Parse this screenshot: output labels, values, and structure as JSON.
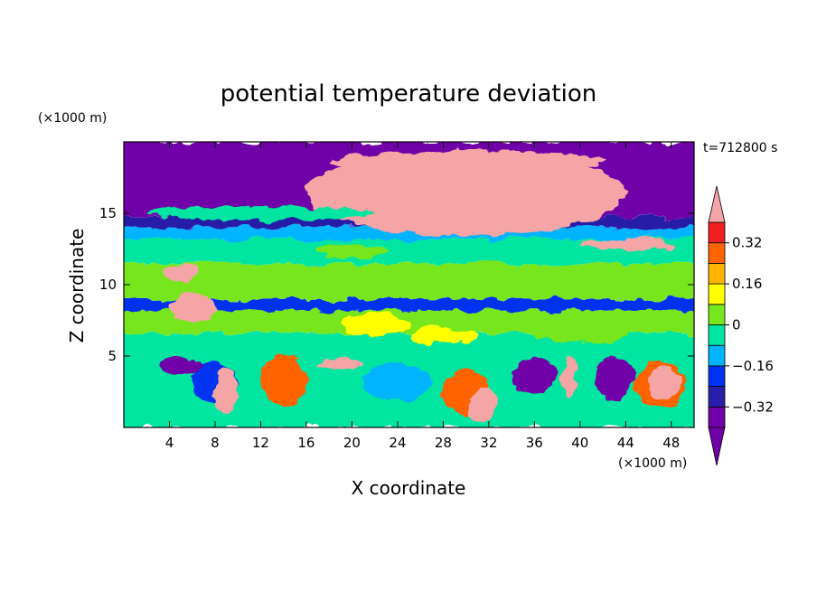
{
  "chart_data": {
    "type": "heatmap",
    "title": "potential temperature deviation",
    "xlabel": "X coordinate",
    "ylabel": "Z coordinate",
    "x_unit": "(×1000 m)",
    "y_unit": "(×1000 m)",
    "time_label": "t=712800 s",
    "xlim": [
      0,
      50
    ],
    "ylim": [
      0,
      20
    ],
    "x_ticks": [
      4,
      8,
      12,
      16,
      20,
      24,
      28,
      32,
      36,
      40,
      44,
      48
    ],
    "y_ticks": [
      5,
      10,
      15
    ],
    "colorbar": {
      "levels": [
        -0.4,
        -0.32,
        -0.24,
        -0.16,
        -0.08,
        0,
        0.08,
        0.16,
        0.24,
        0.32,
        0.4
      ],
      "tick_labels": [
        "0.32",
        "0.16",
        "0",
        "−0.16",
        "−0.32"
      ],
      "tick_values": [
        0.32,
        0.16,
        0,
        -0.16,
        -0.32
      ],
      "colors": [
        "#7000a8",
        "#281ea8",
        "#0032f0",
        "#00b4ff",
        "#00e6a0",
        "#78e61e",
        "#ffff00",
        "#ffb400",
        "#ff6400",
        "#f01e1e",
        "#f5a5a5"
      ],
      "extend": "both"
    }
  }
}
